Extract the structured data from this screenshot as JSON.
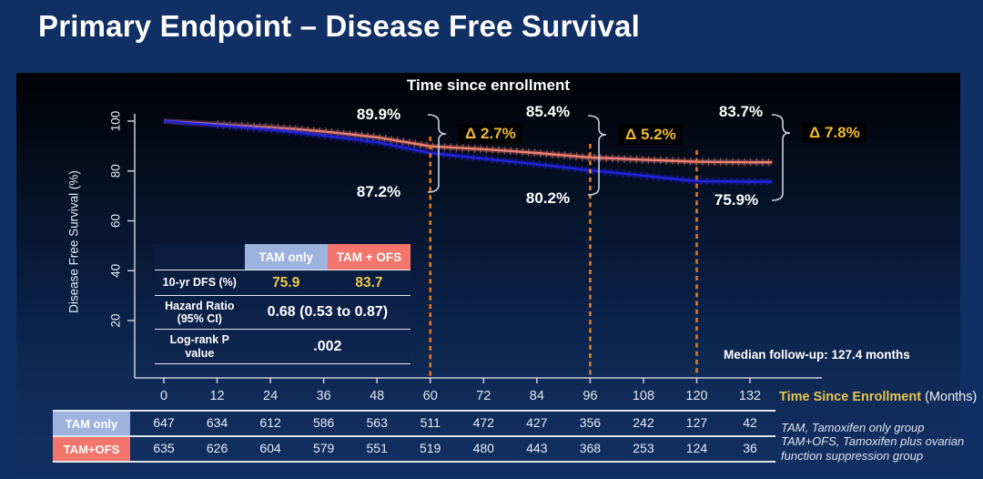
{
  "slide": {
    "title": "Primary Endpoint – Disease Free Survival"
  },
  "chart": {
    "title": "Time since enrollment",
    "y_axis": {
      "label": "Disease Free Survival (%)",
      "ticks": [
        100,
        80,
        60,
        40,
        20
      ]
    },
    "x_axis": {
      "label_emphasis": "Time Since Enrollment",
      "label_unit": " (Months)",
      "ticks": [
        0,
        12,
        24,
        36,
        48,
        60,
        72,
        84,
        96,
        108,
        120,
        132
      ]
    },
    "median_note": "Median follow-up: 127.4 months"
  },
  "chart_data": {
    "type": "line",
    "subtype": "kaplan-meier",
    "title": "Time since enrollment",
    "xlabel": "Time Since Enrollment (Months)",
    "ylabel": "Disease Free Survival (%)",
    "xlim": [
      0,
      138
    ],
    "ylim": [
      0,
      100
    ],
    "x_ticks": [
      0,
      12,
      24,
      36,
      48,
      60,
      72,
      84,
      96,
      108,
      120,
      132
    ],
    "y_ticks": [
      20,
      40,
      60,
      80,
      100
    ],
    "series": [
      {
        "name": "TAM + OFS",
        "color": "#ee8273",
        "points": [
          [
            0,
            100
          ],
          [
            6,
            99.4
          ],
          [
            12,
            98.8
          ],
          [
            18,
            98.1
          ],
          [
            24,
            97.5
          ],
          [
            30,
            96.7
          ],
          [
            36,
            95.8
          ],
          [
            42,
            94.7
          ],
          [
            48,
            93.5
          ],
          [
            54,
            91.7
          ],
          [
            60,
            89.9
          ],
          [
            66,
            89.3
          ],
          [
            72,
            88.7
          ],
          [
            78,
            88.0
          ],
          [
            84,
            87.2
          ],
          [
            90,
            86.3
          ],
          [
            96,
            85.4
          ],
          [
            102,
            85.0
          ],
          [
            108,
            84.5
          ],
          [
            114,
            84.1
          ],
          [
            120,
            83.7
          ],
          [
            126,
            83.6
          ],
          [
            132,
            83.5
          ],
          [
            137,
            83.5
          ]
        ]
      },
      {
        "name": "TAM only",
        "color": "#2323e0",
        "points": [
          [
            0,
            100
          ],
          [
            6,
            99.1
          ],
          [
            12,
            98.3
          ],
          [
            18,
            97.4
          ],
          [
            24,
            96.5
          ],
          [
            30,
            95.4
          ],
          [
            36,
            94.2
          ],
          [
            42,
            92.9
          ],
          [
            48,
            91.5
          ],
          [
            54,
            89.4
          ],
          [
            60,
            87.2
          ],
          [
            66,
            86.1
          ],
          [
            72,
            84.9
          ],
          [
            78,
            83.8
          ],
          [
            84,
            82.7
          ],
          [
            90,
            81.5
          ],
          [
            96,
            80.2
          ],
          [
            102,
            79.2
          ],
          [
            108,
            78.1
          ],
          [
            114,
            77.0
          ],
          [
            120,
            75.9
          ],
          [
            126,
            75.8
          ],
          [
            132,
            75.7
          ],
          [
            137,
            75.7
          ]
        ]
      }
    ],
    "landmarks": [
      {
        "month": 60,
        "tam_ofs": "89.9%",
        "tam_only": "87.2%",
        "delta": "Δ 2.7%"
      },
      {
        "month": 96,
        "tam_ofs": "85.4%",
        "tam_only": "80.2%",
        "delta": "Δ 5.2%"
      },
      {
        "month": 120,
        "tam_ofs": "83.7%",
        "tam_only": "75.9%",
        "delta": "Δ 7.8%"
      }
    ],
    "median_followup_months": 127.4,
    "legend_position": "none",
    "grid": false
  },
  "stats_table": {
    "col_headers": [
      "TAM only",
      "TAM + OFS"
    ],
    "dfs_row": {
      "label": "10-yr DFS (%)",
      "tam_only": "75.9",
      "tam_ofs": "83.7"
    },
    "hr_row": {
      "label": "Hazard Ratio (95% CI)",
      "value": "0.68 (0.53 to 0.87)"
    },
    "logrank_row": {
      "label": "Log-rank P value",
      "value": ".002"
    }
  },
  "risk_table": {
    "rows": [
      {
        "label": "TAM only",
        "color": "#9db3dd",
        "counts": [
          647,
          634,
          612,
          586,
          563,
          511,
          472,
          427,
          356,
          242,
          127,
          42
        ]
      },
      {
        "label": "TAM+OFS",
        "color": "#f4756b",
        "counts": [
          635,
          626,
          604,
          579,
          551,
          519,
          480,
          443,
          368,
          253,
          124,
          36
        ]
      }
    ]
  },
  "footnotes": [
    "TAM, Tamoxifen only group",
    "TAM+OFS, Tamoxifen plus ovarian function suppression group"
  ],
  "colors": {
    "slide_bg": "#102f64",
    "panel_top": "#010107",
    "panel_bottom": "#113063",
    "tam_ofs_curve": "#ee8273",
    "tam_only_curve": "#2323e0",
    "dash_orange": "#e8781e",
    "gold": "#ecc94b",
    "delta_gold": "#efbb2d",
    "axis": "#c9d0da",
    "header_blue": "#9db3dd",
    "header_salmon": "#f4756b"
  }
}
